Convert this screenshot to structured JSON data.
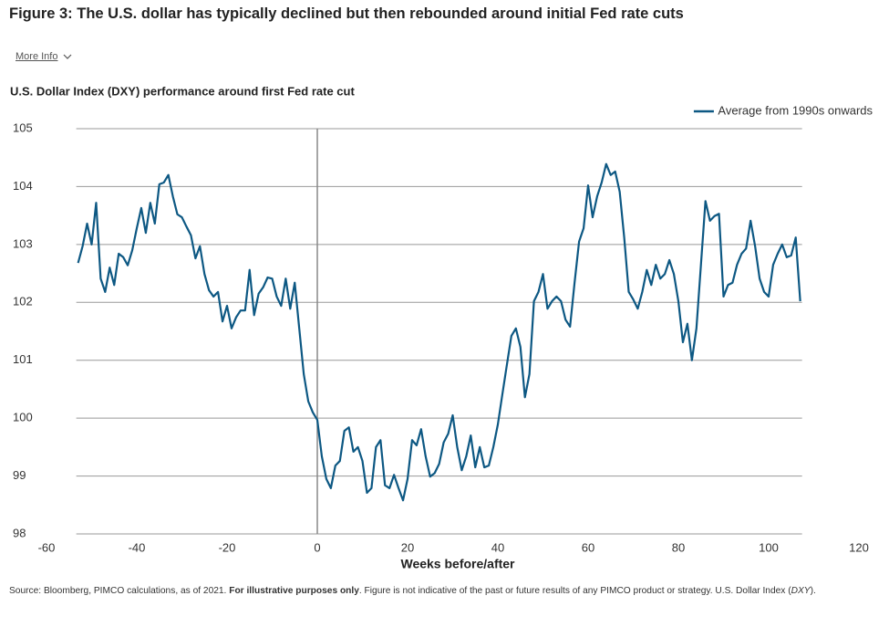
{
  "header": {
    "title": "Figure 3: The U.S. dollar has typically declined but then rebounded around initial Fed rate cuts",
    "more_info": "More Info"
  },
  "chart_data": {
    "type": "line",
    "title": "U.S. Dollar Index (DXY) performance around first Fed rate cut",
    "x_label": "Weeks before/after",
    "x": [
      -53,
      -52,
      -51,
      -50,
      -49,
      -48,
      -47,
      -46,
      -45,
      -44,
      -43,
      -42,
      -41,
      -40,
      -39,
      -38,
      -37,
      -36,
      -35,
      -34,
      -33,
      -32,
      -31,
      -30,
      -29,
      -28,
      -27,
      -26,
      -25,
      -24,
      -23,
      -22,
      -21,
      -20,
      -19,
      -18,
      -17,
      -16,
      -15,
      -14,
      -13,
      -12,
      -11,
      -10,
      -9,
      -8,
      -7,
      -6,
      -5,
      -4,
      -3,
      -2,
      -1,
      0,
      1,
      2,
      3,
      4,
      5,
      6,
      7,
      8,
      9,
      10,
      11,
      12,
      13,
      14,
      15,
      16,
      17,
      18,
      19,
      20,
      21,
      22,
      23,
      24,
      25,
      26,
      27,
      28,
      29,
      30,
      31,
      32,
      33,
      34,
      35,
      36,
      37,
      38,
      39,
      40,
      41,
      42,
      43,
      44,
      45,
      46,
      47,
      48,
      49,
      50,
      51,
      52,
      53,
      54,
      55,
      56,
      57,
      58,
      59,
      60,
      61,
      62,
      63,
      64,
      65,
      66,
      67,
      68,
      69,
      70,
      71,
      72,
      73,
      74,
      75,
      76,
      77,
      78,
      79,
      80,
      81,
      82,
      83,
      84,
      85,
      86,
      87,
      88,
      89,
      90,
      91,
      92,
      93,
      94,
      95,
      96,
      97,
      98,
      99,
      100,
      101,
      102,
      103,
      104,
      105,
      106,
      107
    ],
    "series": [
      {
        "name": "Average from 1990s onwards",
        "color": "#0d5883",
        "values": [
          102.68,
          102.97,
          103.36,
          103.0,
          103.72,
          102.41,
          102.18,
          102.6,
          102.3,
          102.84,
          102.78,
          102.64,
          102.9,
          103.28,
          103.63,
          103.2,
          103.72,
          103.36,
          104.04,
          104.07,
          104.2,
          103.83,
          103.52,
          103.47,
          103.31,
          103.16,
          102.76,
          102.97,
          102.49,
          102.21,
          102.1,
          102.18,
          101.67,
          101.94,
          101.55,
          101.74,
          101.86,
          101.86,
          102.56,
          101.78,
          102.15,
          102.26,
          102.43,
          102.41,
          102.1,
          101.94,
          102.41,
          101.89,
          102.34,
          101.55,
          100.76,
          100.29,
          100.1,
          99.97,
          99.34,
          98.95,
          98.79,
          99.18,
          99.26,
          99.78,
          99.84,
          99.42,
          99.5,
          99.26,
          98.71,
          98.79,
          99.5,
          99.62,
          98.84,
          98.79,
          99.02,
          98.79,
          98.58,
          98.95,
          99.62,
          99.53,
          99.81,
          99.34,
          98.99,
          99.05,
          99.21,
          99.58,
          99.73,
          100.05,
          99.5,
          99.1,
          99.34,
          99.7,
          99.15,
          99.5,
          99.15,
          99.18,
          99.5,
          99.89,
          100.41,
          100.92,
          101.42,
          101.55,
          101.23,
          100.36,
          100.76,
          102.02,
          102.18,
          102.49,
          101.89,
          102.02,
          102.1,
          102.02,
          101.7,
          101.58,
          102.34,
          103.05,
          103.28,
          104.02,
          103.47,
          103.83,
          104.07,
          104.39,
          104.2,
          104.26,
          103.91,
          103.12,
          102.18,
          102.05,
          101.89,
          102.18,
          102.56,
          102.3,
          102.65,
          102.41,
          102.49,
          102.73,
          102.49,
          102.02,
          101.31,
          101.63,
          101.0,
          101.55,
          102.65,
          103.75,
          103.41,
          103.49,
          103.53,
          102.1,
          102.3,
          102.34,
          102.65,
          102.84,
          102.93,
          103.41,
          102.97,
          102.41,
          102.18,
          102.1,
          102.65,
          102.84,
          103.0,
          102.78,
          102.81,
          103.12,
          102.02
        ]
      }
    ],
    "xlim": [
      -60,
      120
    ],
    "xticks": [
      -60,
      -40,
      -20,
      0,
      20,
      40,
      60,
      80,
      100,
      120
    ],
    "ylim": [
      98,
      105
    ],
    "yticks": [
      98,
      99,
      100,
      101,
      102,
      103,
      104,
      105
    ],
    "vline": 0,
    "grid": true,
    "legend": "top-right"
  },
  "footnote": [
    "Source: Bloomberg, PIMCO calculations, as of 2021. ",
    "For illustrative purposes only",
    ". Figure is not indicative of the past or future results of any PIMCO product or strategy. U.S. Dollar Index (",
    "DXY",
    ")."
  ]
}
